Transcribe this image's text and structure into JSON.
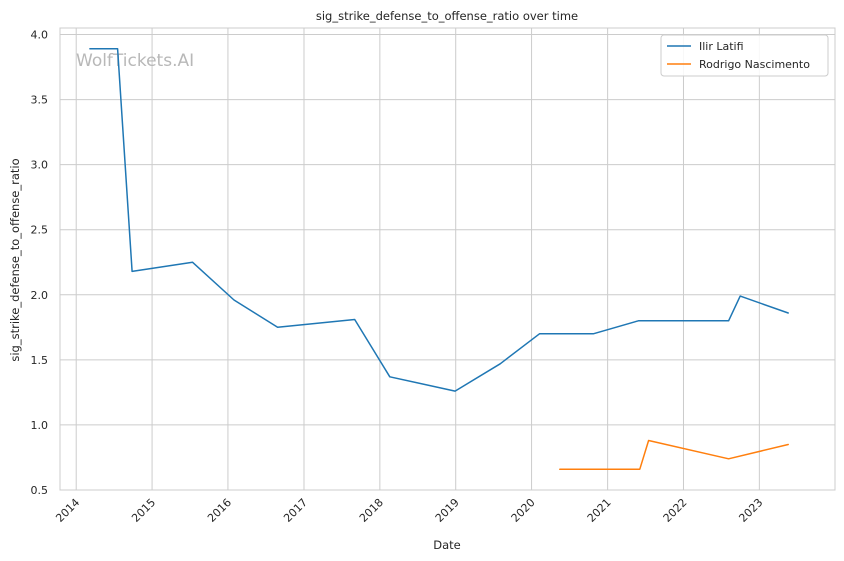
{
  "chart_data": {
    "type": "line",
    "title": "sig_strike_defense_to_offense_ratio over time",
    "xlabel": "Date",
    "ylabel": "sig_strike_defense_to_offense_ratio",
    "watermark": "WolfTickets.AI",
    "x_ticks": [
      "2014",
      "2015",
      "2016",
      "2017",
      "2018",
      "2019",
      "2020",
      "2021",
      "2022",
      "2023"
    ],
    "y_ticks": [
      "0.5",
      "1.0",
      "1.5",
      "2.0",
      "2.5",
      "3.0",
      "3.5",
      "4.0"
    ],
    "xlim": [
      "2013-10-15",
      "2023-12-31"
    ],
    "ylim": [
      0.5,
      4.05
    ],
    "grid": true,
    "legend_position": "top-right",
    "series": [
      {
        "name": "Ilir Latifi",
        "color": "#1f77b4",
        "points": [
          {
            "x": "2014-03-08",
            "y": 3.89
          },
          {
            "x": "2014-07-19",
            "y": 3.89
          },
          {
            "x": "2014-09-27",
            "y": 2.18
          },
          {
            "x": "2015-07-15",
            "y": 2.25
          },
          {
            "x": "2016-01-30",
            "y": 1.96
          },
          {
            "x": "2016-08-27",
            "y": 1.75
          },
          {
            "x": "2017-09-02",
            "y": 1.81
          },
          {
            "x": "2018-02-18",
            "y": 1.37
          },
          {
            "x": "2018-12-29",
            "y": 1.26
          },
          {
            "x": "2019-08-03",
            "y": 1.47
          },
          {
            "x": "2020-02-08",
            "y": 1.7
          },
          {
            "x": "2020-10-24",
            "y": 1.7
          },
          {
            "x": "2021-05-29",
            "y": 1.8
          },
          {
            "x": "2022-08-06",
            "y": 1.8
          },
          {
            "x": "2022-10-01",
            "y": 1.99
          },
          {
            "x": "2023-05-20",
            "y": 1.86
          }
        ]
      },
      {
        "name": "Rodrigo Nascimento",
        "color": "#ff7f0e",
        "points": [
          {
            "x": "2020-05-16",
            "y": 0.66
          },
          {
            "x": "2021-06-05",
            "y": 0.66
          },
          {
            "x": "2021-07-17",
            "y": 0.88
          },
          {
            "x": "2022-08-06",
            "y": 0.74
          },
          {
            "x": "2023-05-20",
            "y": 0.85
          }
        ]
      }
    ]
  }
}
